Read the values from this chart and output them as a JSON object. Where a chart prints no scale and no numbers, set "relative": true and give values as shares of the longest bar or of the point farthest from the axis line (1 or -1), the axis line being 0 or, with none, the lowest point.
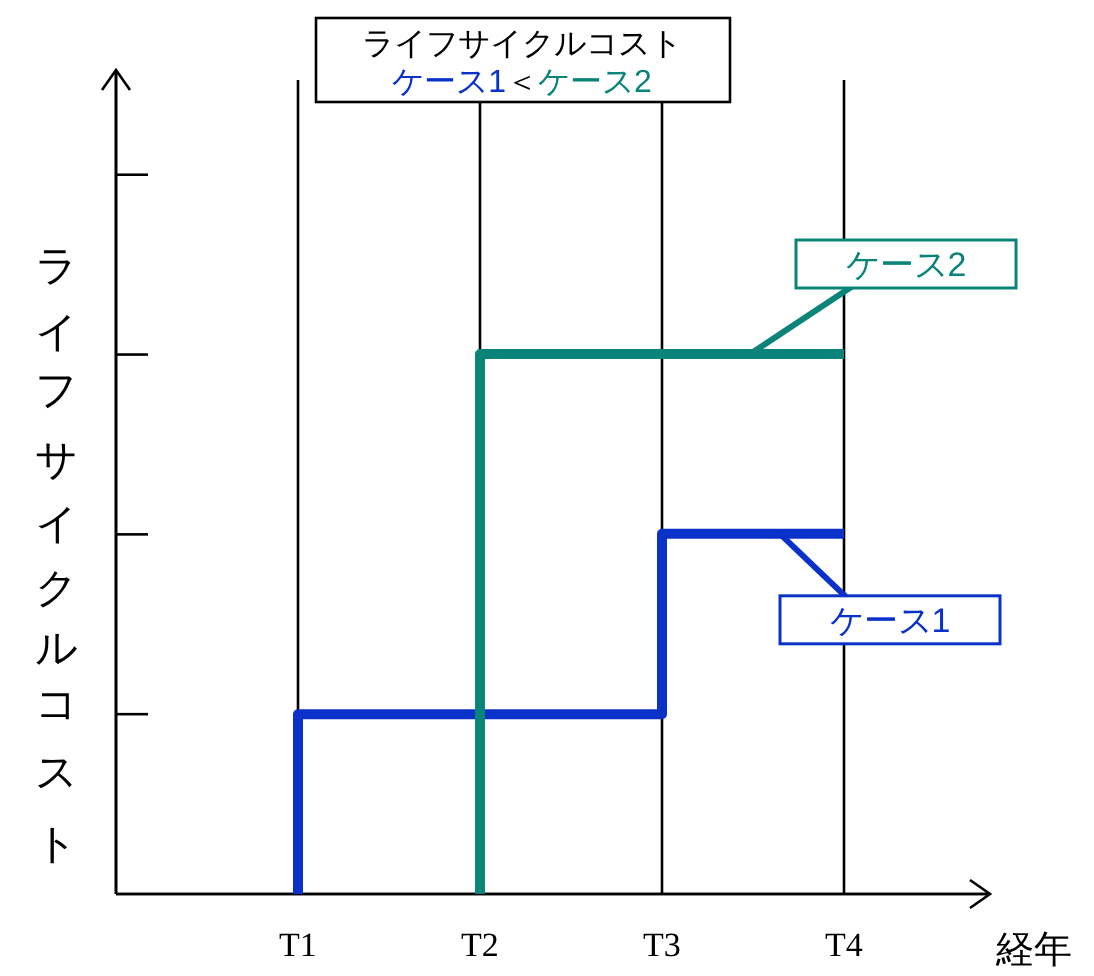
{
  "chart_data": {
    "type": "line",
    "title": "ライフサイクルコスト",
    "subtitle": "ケース1＜ケース2",
    "xlabel": "経年",
    "ylabel": "ライフサイクルコスト",
    "categories": [
      "T1",
      "T2",
      "T3",
      "T4"
    ],
    "relative": true,
    "grid": "x",
    "series": [
      {
        "name": "ケース1",
        "color": "#0a32c8",
        "x": [
          "T1",
          "T1",
          "T3",
          "T3",
          "T4"
        ],
        "values": [
          0,
          0.333,
          0.333,
          0.667,
          0.667
        ]
      },
      {
        "name": "ケース2",
        "color": "#0a8478",
        "x": [
          "T2",
          "T2",
          "T4"
        ],
        "values": [
          0,
          1,
          1
        ]
      }
    ]
  }
}
